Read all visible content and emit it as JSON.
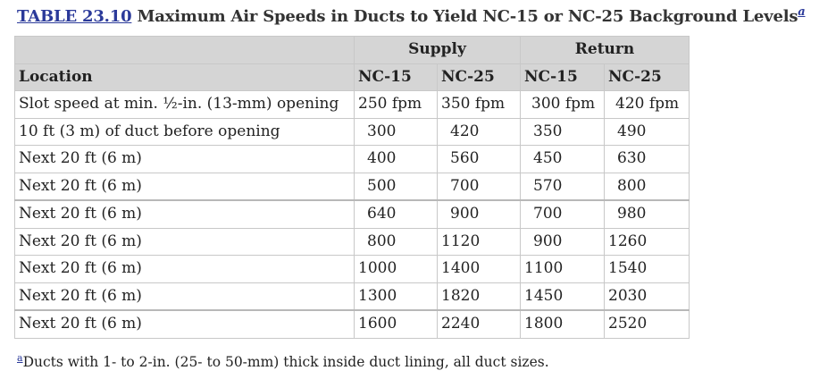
{
  "caption": {
    "table_number": "TABLE 23.10",
    "title": "Maximum Air Speeds in Ducts to Yield NC-15 or NC-25 Background Levels",
    "footnote_marker": "a"
  },
  "table": {
    "group_headers": [
      "Supply",
      "Return"
    ],
    "location_header": "Location",
    "sub_headers": [
      "NC-15",
      "NC-25",
      "NC-15",
      "NC-25"
    ],
    "rows": [
      {
        "location": "Slot speed at min. ½-in. (13-mm) opening",
        "values": [
          "250 fpm",
          "350 fpm",
          "300 fpm",
          "420 fpm"
        ]
      },
      {
        "location": "10 ft (3 m) of duct before opening",
        "values": [
          "300",
          "420",
          "350",
          "490"
        ]
      },
      {
        "location": "Next 20 ft (6 m)",
        "values": [
          "400",
          "560",
          "450",
          "630"
        ]
      },
      {
        "location": "Next 20 ft (6 m)",
        "values": [
          "500",
          "700",
          "570",
          "800"
        ]
      },
      {
        "location": "Next 20 ft (6 m)",
        "values": [
          "640",
          "900",
          "700",
          "980"
        ]
      },
      {
        "location": "Next 20 ft (6 m)",
        "values": [
          "800",
          "1120",
          "900",
          "1260"
        ]
      },
      {
        "location": "Next 20 ft (6 m)",
        "values": [
          "1000",
          "1400",
          "1100",
          "1540"
        ]
      },
      {
        "location": "Next 20 ft (6 m)",
        "values": [
          "1300",
          "1820",
          "1450",
          "2030"
        ]
      },
      {
        "location": "Next 20 ft (6 m)",
        "values": [
          "1600",
          "2240",
          "1800",
          "2520"
        ]
      }
    ]
  },
  "footnote": {
    "marker": "a",
    "text": "Ducts with 1- to 2-in. (25- to 50-mm) thick inside duct lining, all duct sizes."
  },
  "colors": {
    "link": "#2b3a9a",
    "header_bg": "#d5d5d5",
    "border": "#c8c8c8"
  }
}
